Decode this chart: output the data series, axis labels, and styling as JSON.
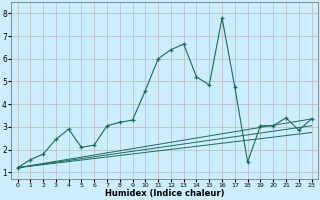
{
  "xlabel": "Humidex (Indice chaleur)",
  "bg_color": "#cceeff",
  "grid_color": "#b8b8b8",
  "line_color": "#1a6b5a",
  "xlim": [
    -0.5,
    23.5
  ],
  "ylim": [
    0.7,
    8.5
  ],
  "yticks": [
    1,
    2,
    3,
    4,
    5,
    6,
    7,
    8
  ],
  "xticks": [
    0,
    1,
    2,
    3,
    4,
    5,
    6,
    7,
    8,
    9,
    10,
    11,
    12,
    13,
    14,
    15,
    16,
    17,
    18,
    19,
    20,
    21,
    22,
    23
  ],
  "main_series": {
    "x": [
      0,
      1,
      2,
      3,
      4,
      5,
      6,
      7,
      8,
      9,
      10,
      11,
      12,
      13,
      14,
      15,
      16,
      17,
      18,
      19,
      20,
      21,
      22,
      23
    ],
    "y": [
      1.2,
      1.55,
      1.8,
      2.45,
      2.9,
      2.1,
      2.2,
      3.05,
      3.2,
      3.3,
      4.6,
      6.0,
      6.4,
      6.65,
      5.2,
      4.85,
      7.8,
      4.75,
      1.45,
      3.05,
      3.05,
      3.4,
      2.85,
      3.35
    ],
    "marker_indices": [
      0,
      1,
      2,
      3,
      4,
      5,
      6,
      7,
      8,
      9,
      10,
      11,
      12,
      13,
      14,
      15,
      16,
      17,
      18,
      19,
      20,
      21,
      22,
      23
    ]
  },
  "trend_lines": [
    {
      "x": [
        0,
        23
      ],
      "y": [
        1.2,
        3.35
      ]
    },
    {
      "x": [
        0,
        23
      ],
      "y": [
        1.2,
        3.05
      ]
    },
    {
      "x": [
        0,
        23
      ],
      "y": [
        1.2,
        2.75
      ]
    }
  ]
}
